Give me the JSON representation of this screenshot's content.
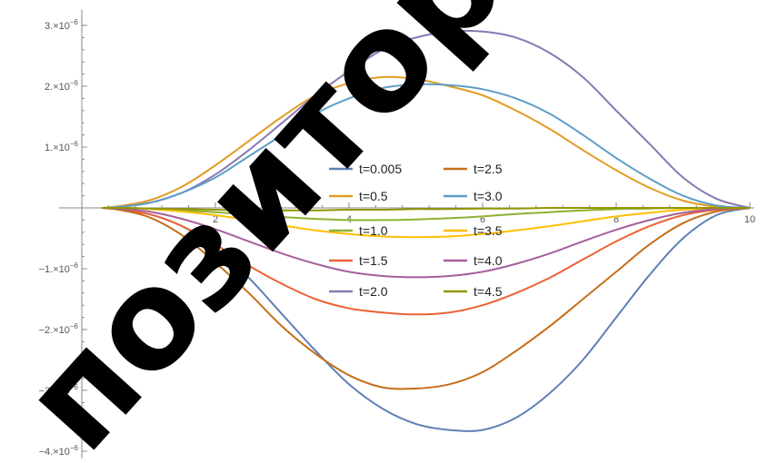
{
  "chart_data": {
    "type": "line",
    "title": "",
    "xlabel": "",
    "ylabel": "",
    "xlim": [
      0,
      10
    ],
    "ylim": [
      -4e-06,
      3.2e-06
    ],
    "x_ticks": [
      {
        "value": 2,
        "label": "2"
      },
      {
        "value": 4,
        "label": "4"
      },
      {
        "value": 6,
        "label": "6"
      },
      {
        "value": 8,
        "label": "8"
      },
      {
        "value": 10,
        "label": "10"
      }
    ],
    "y_ticks": [
      {
        "value": 3e-06,
        "mantissa": "3.×10",
        "exp": "−6"
      },
      {
        "value": 2e-06,
        "mantissa": "2.×10",
        "exp": "−6"
      },
      {
        "value": 1e-06,
        "mantissa": "1.×10",
        "exp": "−6"
      },
      {
        "value": -1e-06,
        "mantissa": "−1.×10",
        "exp": "−6"
      },
      {
        "value": -2e-06,
        "mantissa": "−2.×10",
        "exp": "−6"
      },
      {
        "value": -3e-06,
        "mantissa": "−3.×10",
        "exp": "−6"
      },
      {
        "value": -4e-06,
        "mantissa": "−4.×10",
        "exp": "−6"
      }
    ],
    "grid": false,
    "legend_position": "center",
    "series": [
      {
        "name": "t=0.005",
        "color": "#5e81b5",
        "x": [
          0.5,
          1,
          1.5,
          2,
          2.5,
          3,
          3.5,
          4,
          4.5,
          5,
          5.5,
          6,
          6.5,
          7,
          7.5,
          8,
          8.5,
          9,
          9.5,
          10
        ],
        "y": [
          -2e-08,
          -1e-07,
          -3e-07,
          -6.5e-07,
          -1.15e-06,
          -1.75e-06,
          -2.35e-06,
          -2.9e-06,
          -3.3e-06,
          -3.55e-06,
          -3.65e-06,
          -3.65e-06,
          -3.45e-06,
          -3.05e-06,
          -2.5e-06,
          -1.8e-06,
          -1.1e-06,
          -5e-07,
          -1.2e-07,
          0
        ]
      },
      {
        "name": "t=0.5",
        "color": "#e19c24",
        "x": [
          0.5,
          1,
          1.5,
          2,
          2.5,
          3,
          3.5,
          4,
          4.5,
          5,
          5.5,
          6,
          6.5,
          7,
          7.5,
          8,
          8.5,
          9,
          9.5,
          10
        ],
        "y": [
          2e-08,
          1.2e-07,
          3.5e-07,
          7e-07,
          1.1e-06,
          1.5e-06,
          1.85e-06,
          2.05e-06,
          2.15e-06,
          2.12e-06,
          2e-06,
          1.85e-06,
          1.6e-06,
          1.3e-06,
          9.5e-07,
          6.2e-07,
          3.3e-07,
          1.2e-07,
          2e-08,
          0
        ]
      },
      {
        "name": "t=1.0",
        "color": "#8fb032",
        "x": [
          0.5,
          1,
          1.5,
          2,
          2.5,
          3,
          3.5,
          4,
          4.5,
          5,
          5.5,
          6,
          6.5,
          7,
          7.5,
          8,
          8.5,
          9,
          9.5,
          10
        ],
        "y": [
          0,
          -1e-08,
          -4e-08,
          -7e-08,
          -1.1e-07,
          -1.5e-07,
          -1.8e-07,
          -2e-07,
          -2e-07,
          -1.9e-07,
          -1.7e-07,
          -1.4e-07,
          -1e-07,
          -7e-08,
          -4e-08,
          -2e-08,
          -1e-08,
          0,
          0,
          0
        ]
      },
      {
        "name": "t=1.5",
        "color": "#eb6235",
        "x": [
          0.5,
          1,
          1.5,
          2,
          2.5,
          3,
          3.5,
          4,
          4.5,
          5,
          5.5,
          6,
          6.5,
          7,
          7.5,
          8,
          8.5,
          9,
          9.5,
          10
        ],
        "y": [
          -2e-08,
          -1e-07,
          -3e-07,
          -6e-07,
          -9.5e-07,
          -1.25e-06,
          -1.5e-06,
          -1.65e-06,
          -1.72e-06,
          -1.75e-06,
          -1.72e-06,
          -1.6e-06,
          -1.4e-06,
          -1.15e-06,
          -8.5e-07,
          -5.5e-07,
          -3e-07,
          -1.2e-07,
          -3e-08,
          0
        ]
      },
      {
        "name": "t=2.0",
        "color": "#8778b3",
        "x": [
          0.5,
          1,
          1.5,
          2,
          2.5,
          3,
          3.5,
          4,
          4.5,
          5,
          5.5,
          6,
          6.5,
          7,
          7.5,
          8,
          8.5,
          9,
          9.5,
          10
        ],
        "y": [
          1e-08,
          8e-08,
          2.5e-07,
          5.5e-07,
          9.5e-07,
          1.4e-06,
          1.85e-06,
          2.25e-06,
          2.6e-06,
          2.8e-06,
          2.9e-06,
          2.9e-06,
          2.8e-06,
          2.55e-06,
          2.15e-06,
          1.6e-06,
          1.05e-06,
          5e-07,
          1.5e-07,
          0
        ]
      },
      {
        "name": "t=2.5",
        "color": "#c56e1a",
        "x": [
          0.5,
          1,
          1.5,
          2,
          2.5,
          3,
          3.5,
          4,
          4.5,
          5,
          5.5,
          6,
          6.5,
          7,
          7.5,
          8,
          8.5,
          9,
          9.5,
          10
        ],
        "y": [
          -2e-08,
          -1.5e-07,
          -4.5e-07,
          -9e-07,
          -1.4e-06,
          -1.95e-06,
          -2.4e-06,
          -2.75e-06,
          -2.95e-06,
          -2.97e-06,
          -2.9e-06,
          -2.7e-06,
          -2.35e-06,
          -1.95e-06,
          -1.5e-06,
          -1.05e-06,
          -6e-07,
          -2.5e-07,
          -6e-08,
          0
        ]
      },
      {
        "name": "t=3.0",
        "color": "#5d9ec7",
        "x": [
          0.5,
          1,
          1.5,
          2,
          2.5,
          3,
          3.5,
          4,
          4.5,
          5,
          5.5,
          6,
          6.5,
          7,
          7.5,
          8,
          8.5,
          9,
          9.5,
          10
        ],
        "y": [
          1e-08,
          8e-08,
          2.5e-07,
          5e-07,
          8.5e-07,
          1.2e-06,
          1.55e-06,
          1.8e-06,
          1.97e-06,
          2.03e-06,
          2.02e-06,
          1.95e-06,
          1.8e-06,
          1.55e-06,
          1.2e-06,
          8.2e-07,
          4.8e-07,
          2e-07,
          4e-08,
          0
        ]
      },
      {
        "name": "t=3.5",
        "color": "#ffbf00",
        "x": [
          0.5,
          1,
          1.5,
          2,
          2.5,
          3,
          3.5,
          4,
          4.5,
          5,
          5.5,
          6,
          6.5,
          7,
          7.5,
          8,
          8.5,
          9,
          9.5,
          10
        ],
        "y": [
          0,
          -2e-08,
          -6e-08,
          -1.2e-07,
          -2e-07,
          -2.9e-07,
          -3.7e-07,
          -4.3e-07,
          -4.7e-07,
          -4.8e-07,
          -4.7e-07,
          -4.3e-07,
          -3.7e-07,
          -3e-07,
          -2.2e-07,
          -1.4e-07,
          -8e-08,
          -3e-08,
          -1e-08,
          0
        ]
      },
      {
        "name": "t=4.0",
        "color": "#a5609d",
        "x": [
          0.5,
          1,
          1.5,
          2,
          2.5,
          3,
          3.5,
          4,
          4.5,
          5,
          5.5,
          6,
          6.5,
          7,
          7.5,
          8,
          8.5,
          9,
          9.5,
          10
        ],
        "y": [
          -1e-08,
          -6e-08,
          -1.8e-07,
          -3.5e-07,
          -5.5e-07,
          -7.5e-07,
          -9.2e-07,
          -1.05e-06,
          -1.12e-06,
          -1.14e-06,
          -1.12e-06,
          -1.05e-06,
          -9.2e-07,
          -7.5e-07,
          -5.5e-07,
          -3.6e-07,
          -2e-07,
          -8e-08,
          -2e-08,
          0
        ]
      },
      {
        "name": "t=4.5",
        "color": "#929600",
        "x": [
          0.5,
          1,
          1.5,
          2,
          2.5,
          3,
          3.5,
          4,
          4.5,
          5,
          5.5,
          6,
          6.5,
          7,
          7.5,
          8,
          8.5,
          9,
          9.5,
          10
        ],
        "y": [
          0,
          -1e-08,
          -2e-08,
          -3e-08,
          -4e-08,
          -4e-08,
          -4e-08,
          -3e-08,
          -3e-08,
          -2e-08,
          -2e-08,
          -1e-08,
          -1e-08,
          0,
          0,
          0,
          0,
          0,
          0,
          0
        ]
      }
    ]
  },
  "watermark": {
    "text": "позитор",
    "color": "#000000"
  }
}
